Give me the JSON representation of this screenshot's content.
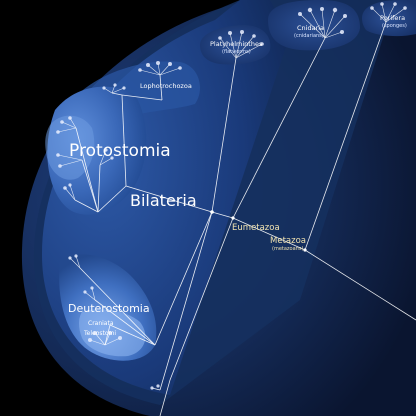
{
  "tree": {
    "clades": {
      "protostomia": {
        "name": "Protostomia"
      },
      "bilateria": {
        "name": "Bilateria"
      },
      "lophotrochozoa": {
        "name": "Lophotrochozoa"
      },
      "platyhelminthes": {
        "name": "Platyhelminthes",
        "common": "(flatworms)"
      },
      "cnidaria": {
        "name": "Cnidaria",
        "common": "(cnidarians)"
      },
      "porifera": {
        "name": "Porifera",
        "common": "(sponges)"
      },
      "eumetazoa": {
        "name": "Eumetazoa"
      },
      "metazoa": {
        "name": "Metazoa",
        "common": "(metazoans)"
      },
      "deuterostomia": {
        "name": "Deuterostomia"
      },
      "craniata": {
        "name": "Craniata"
      },
      "teleostomi": {
        "name": "Teleostomi"
      }
    }
  },
  "colors": {
    "background": "#000000",
    "outer_shell": "#0d1a33",
    "middle_shell": "#14284f",
    "inner_shell": "#1d3c78",
    "highlight": "#5a8ad8",
    "branch": "#ffffff",
    "label_gold": "#f0e2b0"
  }
}
